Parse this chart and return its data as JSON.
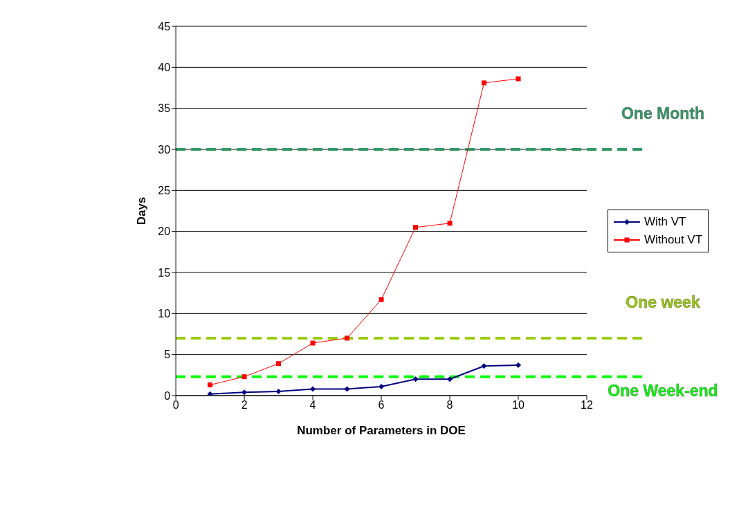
{
  "chart_data": {
    "type": "line",
    "xlabel": "Number of Parameters in DOE",
    "ylabel": "Days",
    "x": [
      1,
      2,
      3,
      4,
      5,
      6,
      7,
      8,
      9,
      10
    ],
    "series": [
      {
        "name": "With VT",
        "color": "#000080",
        "marker": "diamond",
        "values": [
          0.2,
          0.4,
          0.5,
          0.8,
          0.8,
          1.1,
          2.0,
          2.0,
          3.6,
          3.7
        ]
      },
      {
        "name": "Without VT",
        "color": "#ff0000",
        "marker": "square",
        "values": [
          1.3,
          2.3,
          3.9,
          6.4,
          7.0,
          11.7,
          20.5,
          21.0,
          38.1,
          38.6
        ]
      }
    ],
    "xlim": [
      0,
      12
    ],
    "xticks": [
      0,
      2,
      4,
      6,
      8,
      10,
      12
    ],
    "ylim": [
      0,
      45
    ],
    "yticks": [
      0,
      5,
      10,
      15,
      20,
      25,
      30,
      35,
      40,
      45
    ],
    "grid": "y",
    "legend": "right",
    "line_style": "solid",
    "ref_lines": [
      {
        "axis": "y",
        "value": 30,
        "label": "One Month",
        "color": "#339966",
        "line_style": "dashed"
      },
      {
        "axis": "y",
        "value": 7,
        "label": "One week",
        "color": "#99cc00",
        "line_style": "dashed"
      },
      {
        "axis": "y",
        "value": 2.3,
        "label": "One  Week-end",
        "color": "#00ff00",
        "line_style": "dashed"
      }
    ]
  }
}
